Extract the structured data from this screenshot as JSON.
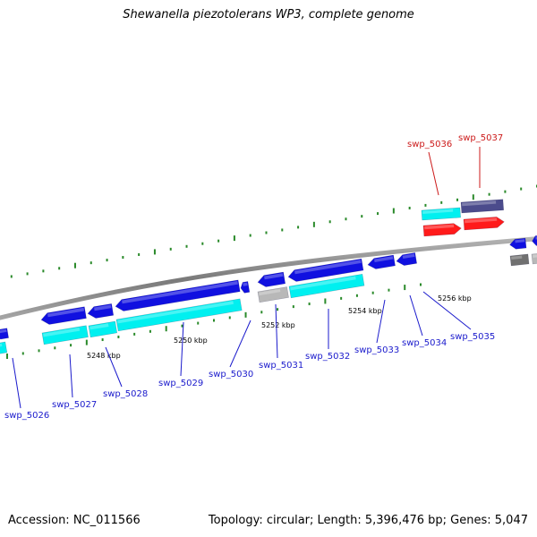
{
  "title": "Shewanella piezotolerans WP3, complete genome",
  "accession": "Accession: NC_011566",
  "topology": "Topology: circular; Length: 5,396,476 bp; Genes: 5,047",
  "colors": {
    "blue_gene": "#1010e0",
    "cyan_gene": "#00f0f0",
    "red_gene": "#ff1a1a",
    "purple_gene": "#4b4b8c",
    "grey_gene": "#b8b8b8",
    "darkgrey_gene": "#707070",
    "backbone": "#8c8c8c",
    "ticks": "#2a8a2a",
    "label_blue": "#1a1acc",
    "label_red": "#cc1a1a"
  },
  "scale_labels": [
    "5248 kbp",
    "5250 kbp",
    "5252 kbp",
    "5254 kbp",
    "5256 kbp"
  ],
  "gene_labels": [
    {
      "id": "swp_5026",
      "color": "blue"
    },
    {
      "id": "swp_5027",
      "color": "blue"
    },
    {
      "id": "swp_5028",
      "color": "blue"
    },
    {
      "id": "swp_5029",
      "color": "blue"
    },
    {
      "id": "swp_5030",
      "color": "blue"
    },
    {
      "id": "swp_5031",
      "color": "blue"
    },
    {
      "id": "swp_5032",
      "color": "blue"
    },
    {
      "id": "swp_5033",
      "color": "blue"
    },
    {
      "id": "swp_5034",
      "color": "blue"
    },
    {
      "id": "swp_5035",
      "color": "blue"
    },
    {
      "id": "swp_5036",
      "color": "red"
    },
    {
      "id": "swp_5037",
      "color": "red"
    }
  ]
}
